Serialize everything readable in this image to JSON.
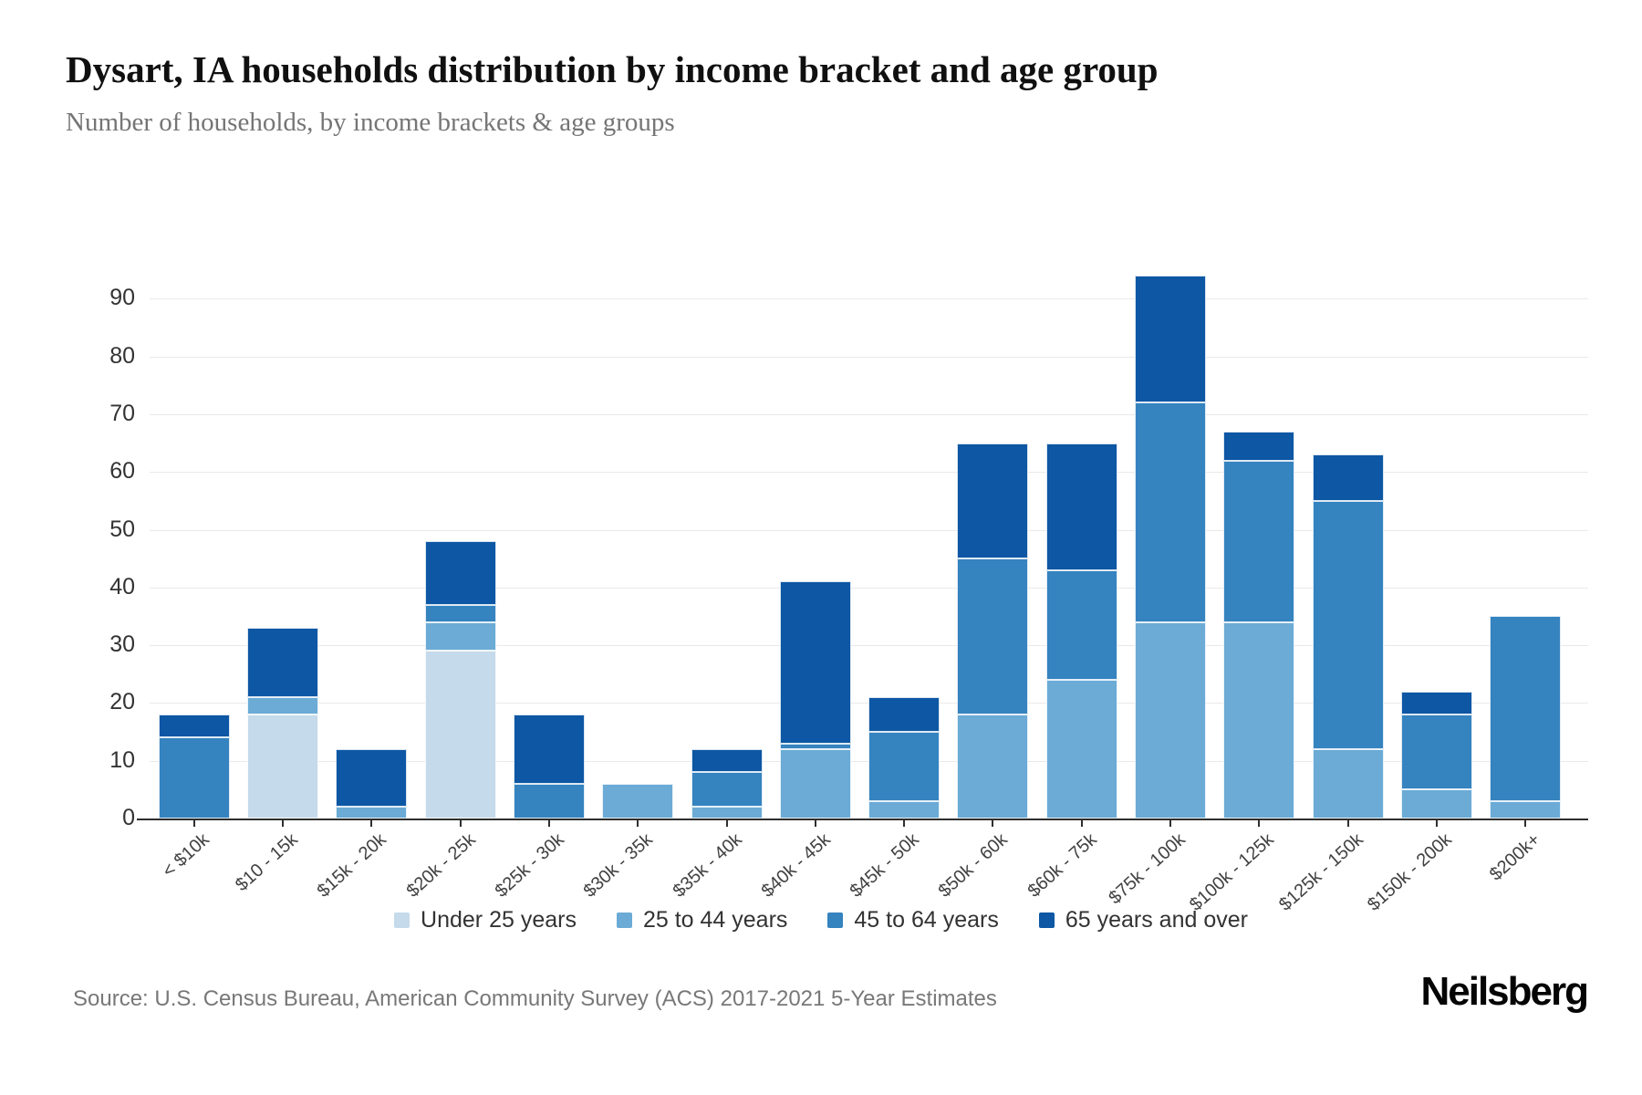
{
  "header": {
    "title": "Dysart, IA households distribution by income bracket and age group",
    "subtitle": "Number of households, by income brackets & age groups"
  },
  "chart_data": {
    "type": "bar",
    "stacked": true,
    "title": "Dysart, IA households distribution by income bracket and age group",
    "subtitle": "Number of households, by income brackets & age groups",
    "xlabel": "",
    "ylabel": "",
    "grid": "horizontal",
    "legend_position": "bottom",
    "ylim": [
      0,
      95
    ],
    "yticks": [
      0,
      10,
      20,
      30,
      40,
      50,
      60,
      70,
      80,
      90
    ],
    "categories": [
      "< $10k",
      "$10 - 15k",
      "$15k - 20k",
      "$20k - 25k",
      "$25k - 30k",
      "$30k - 35k",
      "$35k - 40k",
      "$40k - 45k",
      "$45k - 50k",
      "$50k - 60k",
      "$60k - 75k",
      "$75k - 100k",
      "$100k - 125k",
      "$125k - 150k",
      "$150k - 200k",
      "$200k+"
    ],
    "series": [
      {
        "name": "Under 25 years",
        "color": "#c5daea",
        "values": [
          0,
          18,
          0,
          29,
          0,
          0,
          0,
          0,
          0,
          0,
          0,
          0,
          0,
          0,
          0,
          0
        ]
      },
      {
        "name": "25 to 44 years",
        "color": "#6babd6",
        "values": [
          0,
          3,
          2,
          5,
          0,
          6,
          2,
          12,
          3,
          18,
          24,
          34,
          34,
          12,
          5,
          3
        ]
      },
      {
        "name": "45 to 64 years",
        "color": "#3583bf",
        "values": [
          14,
          0,
          0,
          3,
          6,
          0,
          6,
          1,
          12,
          27,
          19,
          38,
          28,
          43,
          13,
          32
        ]
      },
      {
        "name": "65 years and over",
        "color": "#0d57a4",
        "values": [
          4,
          12,
          10,
          11,
          12,
          0,
          4,
          28,
          6,
          20,
          22,
          22,
          5,
          8,
          4,
          0
        ]
      }
    ],
    "bar_totals": [
      18,
      33,
      12,
      48,
      18,
      6,
      12,
      41,
      21,
      65,
      65,
      94,
      67,
      63,
      22,
      35
    ]
  },
  "footer": {
    "source": "Source: U.S. Census Bureau, American Community Survey (ACS) 2017-2021 5-Year Estimates",
    "brand": "Neilsberg"
  }
}
